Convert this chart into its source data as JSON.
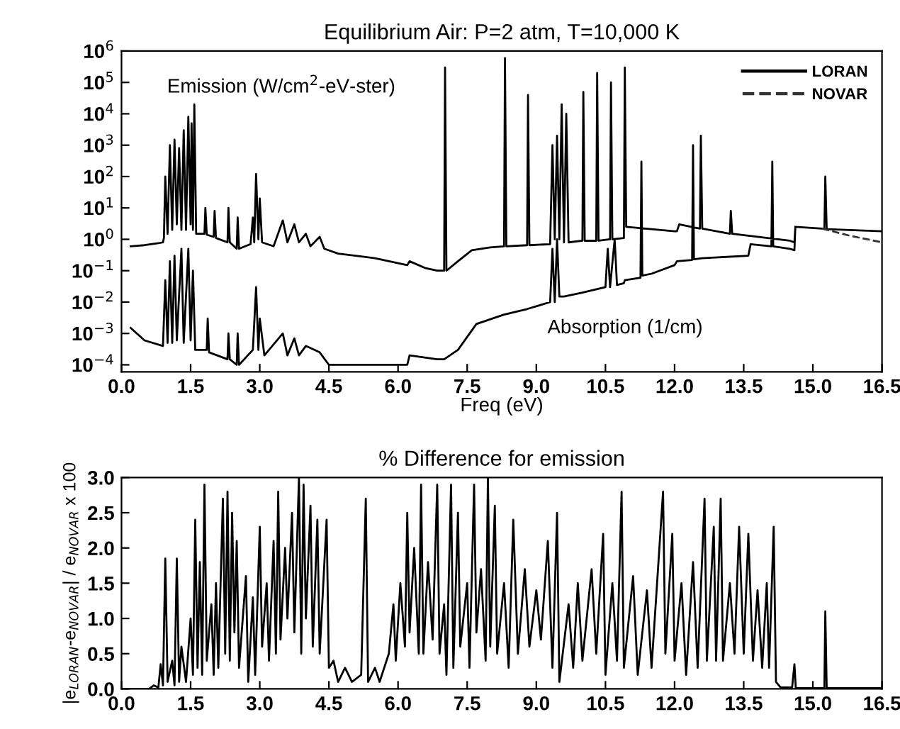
{
  "chart_data": [
    {
      "type": "line",
      "title": "Equilibrium Air: P=2 atm, T=10,000 K",
      "xlabel": "Freq (eV)",
      "log": "y",
      "legend": "top right",
      "marker": "none",
      "grid": false,
      "xlim": [
        0,
        16.5
      ],
      "xticks": [
        {
          "value": 0,
          "label": "0.0"
        },
        {
          "value": 1.5,
          "label": "1.5"
        },
        {
          "value": 3,
          "label": "3.0"
        },
        {
          "value": 4.5,
          "label": "4.5"
        },
        {
          "value": 6,
          "label": "6.0"
        },
        {
          "value": 7.5,
          "label": "7.5"
        },
        {
          "value": 9,
          "label": "9.0"
        },
        {
          "value": 10.5,
          "label": "10.5"
        },
        {
          "value": 12,
          "label": "12.0"
        },
        {
          "value": 13.5,
          "label": "13.5"
        },
        {
          "value": 15,
          "label": "15.0"
        },
        {
          "value": 16.5,
          "label": "16.5"
        }
      ],
      "ylim": [
        6e-05,
        1000000
      ],
      "yticks": [
        {
          "value": 0.0001,
          "label": "10$^{−4}$"
        },
        {
          "value": 0.001,
          "label": "10$^{−3}$"
        },
        {
          "value": 0.01,
          "label": "10$^{−2}$"
        },
        {
          "value": 0.1,
          "label": "10$^{−1}$"
        },
        {
          "value": 1,
          "label": "10$^{0}$"
        },
        {
          "value": 10,
          "label": "10$^{1}$"
        },
        {
          "value": 100,
          "label": "10$^{2}$"
        },
        {
          "value": 1000,
          "label": "10$^{3}$"
        },
        {
          "value": 10000,
          "label": "10$^{4}$"
        },
        {
          "value": 100000,
          "label": "10$^{5}$"
        },
        {
          "value": 1000000,
          "label": "10$^{6}$"
        }
      ],
      "annotations": [
        "Emission (W/cm$^{2}$-eV-ster)",
        "Absorption (1/cm)"
      ],
      "series": [
        {
          "name": "LORAN",
          "color": "#000000",
          "line_style": "solid",
          "x": [
            0.2,
            0.5,
            0.8,
            0.9,
            0.92,
            0.95,
            1.0,
            1.05,
            1.1,
            1.15,
            1.2,
            1.25,
            1.3,
            1.35,
            1.4,
            1.45,
            1.5,
            1.52,
            1.55,
            1.58,
            1.62,
            1.8,
            1.82,
            1.85,
            2.0,
            2.02,
            2.05,
            2.3,
            2.32,
            2.35,
            2.5,
            2.52,
            2.55,
            2.8,
            2.85,
            2.88,
            2.92,
            2.97,
            3.0,
            3.05,
            3.3,
            3.5,
            3.6,
            3.75,
            3.85,
            4.0,
            4.1,
            4.3,
            4.4,
            4.7,
            5.5,
            6.2,
            6.25,
            6.6,
            6.85,
            7.0,
            7.02,
            7.05,
            7.3,
            7.6,
            8.0,
            8.3,
            8.32,
            8.35,
            8.8,
            8.82,
            8.85,
            9.3,
            9.35,
            9.4,
            9.45,
            9.5,
            9.55,
            9.6,
            9.65,
            9.7,
            10.0,
            10.02,
            10.05,
            10.3,
            10.32,
            10.35,
            10.6,
            10.62,
            10.65,
            10.9,
            10.92,
            10.95,
            12.0,
            12.05,
            12.1,
            12.55,
            12.57,
            12.6,
            13.2,
            13.22,
            13.25,
            14.5,
            14.6,
            14.62,
            15.2,
            15.25,
            15.27,
            15.3,
            16.5,
            null,
            0.2,
            0.5,
            0.9,
            0.95,
            1.0,
            1.05,
            1.1,
            1.15,
            1.2,
            1.3,
            1.35,
            1.45,
            1.5,
            1.55,
            1.6,
            1.85,
            1.87,
            1.9,
            2.3,
            2.32,
            2.35,
            2.5,
            2.52,
            2.55,
            2.85,
            2.92,
            2.97,
            3.0,
            3.1,
            3.5,
            3.6,
            3.75,
            3.85,
            4.0,
            4.3,
            4.5,
            6.2,
            6.25,
            6.85,
            7.0,
            7.3,
            7.7,
            8.3,
            8.8,
            9.3,
            9.35,
            9.4,
            9.45,
            9.5,
            9.6,
            10.0,
            10.5,
            10.55,
            10.6,
            10.7,
            10.75,
            10.9,
            10.92,
            11.26,
            11.28,
            11.3,
            11.5,
            12.0,
            12.05,
            12.38,
            12.4,
            12.42,
            12.6,
            13.6,
            13.65,
            14.1,
            14.12,
            14.14,
            14.5,
            14.6,
            14.62
          ],
          "values": [
            0.6,
            0.65,
            0.75,
            0.8,
            1.1,
            100,
            1.5,
            1000,
            2,
            1500,
            3,
            800,
            2,
            3000,
            2,
            8000,
            3,
            5000,
            2,
            20000,
            1.5,
            1.5,
            10,
            1.4,
            1.2,
            8,
            1.1,
            0.8,
            10,
            0.8,
            0.5,
            5,
            0.5,
            0.7,
            5,
            0.8,
            120,
            1,
            20,
            0.8,
            0.6,
            4,
            0.8,
            3,
            0.8,
            1.5,
            0.6,
            1.2,
            0.5,
            0.35,
            0.25,
            0.15,
            0.2,
            0.12,
            0.1,
            0.1,
            300000,
            0.1,
            0.2,
            0.45,
            0.55,
            0.6,
            600000,
            0.6,
            0.65,
            40000,
            0.65,
            0.7,
            1000,
            1,
            2000,
            1,
            20000,
            0.8,
            10000,
            0.8,
            0.9,
            50000,
            0.9,
            0.9,
            200000,
            0.9,
            1.0,
            100000,
            1.0,
            1.1,
            300000,
            2.5,
            1.8,
            1.8,
            3,
            2.2,
            2000,
            2.2,
            1.5,
            8,
            1.5,
            0.9,
            0.8,
            2.5,
            2.2,
            2.2,
            100,
            2.1,
            1.8,
            null,
            0.0015,
            0.0006,
            0.0004,
            0.05,
            0.0005,
            0.2,
            0.0005,
            0.3,
            0.0006,
            0.5,
            0.0005,
            0.5,
            0.0006,
            0.1,
            0.0003,
            0.0003,
            0.003,
            0.00025,
            0.00015,
            0.001,
            0.00015,
            0.0001,
            0.001,
            0.0001,
            0.0003,
            0.03,
            0.0003,
            0.003,
            0.0002,
            0.001,
            0.0002,
            0.0007,
            0.0002,
            0.0004,
            0.00025,
            0.0001,
            0.0001,
            0.0002,
            0.00015,
            0.00015,
            0.0003,
            0.002,
            0.004,
            0.006,
            0.01,
            0.5,
            0.01,
            1,
            0.015,
            0.015,
            0.02,
            0.03,
            0.5,
            0.03,
            1.0,
            0.035,
            0.04,
            0.05,
            0.06,
            300,
            0.07,
            0.08,
            0.15,
            0.2,
            0.22,
            1000,
            0.23,
            0.25,
            0.3,
            0.7,
            0.6,
            300,
            0.6,
            0.5,
            0.45,
            2.5
          ]
        },
        {
          "name": "NOVAR",
          "color": "#333333",
          "line_style": "dashed",
          "x": [
            15.2,
            15.8,
            16.5
          ],
          "values": [
            2.2,
            1.3,
            0.8
          ]
        }
      ]
    },
    {
      "type": "line",
      "title": "% Difference for emission",
      "ylabel": "|e$_{LORAN}$-e$_{NOVAR}$| / e$_{NOVAR}$ x 100",
      "marker": "none",
      "grid": false,
      "xlim": [
        0,
        16.5
      ],
      "xticks": [
        {
          "value": 0,
          "label": "0.0"
        },
        {
          "value": 1.5,
          "label": "1.5"
        },
        {
          "value": 3,
          "label": "3.0"
        },
        {
          "value": 4.5,
          "label": "4.5"
        },
        {
          "value": 6,
          "label": "6.0"
        },
        {
          "value": 7.5,
          "label": "7.5"
        },
        {
          "value": 9,
          "label": "9.0"
        },
        {
          "value": 10.5,
          "label": "10.5"
        },
        {
          "value": 12,
          "label": "12.0"
        },
        {
          "value": 13.5,
          "label": "13.5"
        },
        {
          "value": 15,
          "label": "15.0"
        },
        {
          "value": 16.5,
          "label": "16.5"
        }
      ],
      "ylim": [
        0,
        3
      ],
      "yticks": [
        {
          "value": 0,
          "label": "0.0"
        },
        {
          "value": 0.5,
          "label": "0.5"
        },
        {
          "value": 1,
          "label": "1.0"
        },
        {
          "value": 1.5,
          "label": "1.5"
        },
        {
          "value": 2,
          "label": "2.0"
        },
        {
          "value": 2.5,
          "label": "2.5"
        },
        {
          "value": 3,
          "label": "3.0"
        }
      ],
      "series": [
        {
          "color": "#000000",
          "line_style": "solid",
          "x": [
            0.0,
            0.6,
            0.7,
            0.8,
            0.85,
            0.9,
            0.95,
            1.0,
            1.1,
            1.15,
            1.2,
            1.25,
            1.3,
            1.4,
            1.5,
            1.55,
            1.6,
            1.65,
            1.7,
            1.75,
            1.8,
            1.85,
            1.95,
            2.0,
            2.05,
            2.1,
            2.2,
            2.25,
            2.3,
            2.35,
            2.4,
            2.45,
            2.5,
            2.55,
            2.7,
            2.75,
            2.85,
            2.9,
            3.0,
            3.05,
            3.15,
            3.2,
            3.3,
            3.35,
            3.4,
            3.45,
            3.55,
            3.6,
            3.7,
            3.75,
            3.85,
            3.9,
            3.95,
            4.0,
            4.1,
            4.15,
            4.25,
            4.3,
            4.45,
            4.5,
            4.6,
            4.7,
            4.85,
            5.0,
            5.2,
            5.3,
            5.35,
            5.5,
            5.6,
            5.8,
            5.9,
            5.95,
            6.05,
            6.15,
            6.2,
            6.25,
            6.35,
            6.45,
            6.5,
            6.55,
            6.65,
            6.75,
            6.85,
            6.9,
            7.0,
            7.05,
            7.15,
            7.2,
            7.3,
            7.35,
            7.5,
            7.55,
            7.65,
            7.7,
            7.8,
            7.9,
            7.95,
            8.0,
            8.1,
            8.15,
            8.3,
            8.4,
            8.5,
            8.6,
            8.75,
            8.85,
            9.0,
            9.1,
            9.25,
            9.35,
            9.45,
            9.5,
            9.7,
            9.8,
            9.9,
            10.0,
            10.2,
            10.3,
            10.45,
            10.5,
            10.65,
            10.75,
            10.85,
            10.9,
            11.1,
            11.2,
            11.4,
            11.5,
            11.65,
            11.75,
            11.8,
            11.95,
            12.0,
            12.15,
            12.25,
            12.4,
            12.5,
            12.65,
            12.7,
            12.85,
            12.9,
            13.0,
            13.05,
            13.2,
            13.3,
            13.4,
            13.5,
            13.6,
            13.7,
            13.8,
            13.9,
            14.0,
            14.05,
            14.15,
            14.2,
            14.3,
            14.55,
            14.6,
            14.63,
            15.25,
            15.27,
            15.3,
            16.5
          ],
          "values": [
            0,
            0,
            0.05,
            0.02,
            0.35,
            0.05,
            1.85,
            0.1,
            0.4,
            0.05,
            1.85,
            0.1,
            0.6,
            0.1,
            1.0,
            0.2,
            2.4,
            0.3,
            1.8,
            0.2,
            2.9,
            0.4,
            1.2,
            0.2,
            1.5,
            0.3,
            2.7,
            0.5,
            2.8,
            0.4,
            2.5,
            0.8,
            2.1,
            0.3,
            1.6,
            0.1,
            1.3,
            0.2,
            2.3,
            0.6,
            1.5,
            0.4,
            2.1,
            0.5,
            2.8,
            0.7,
            2.0,
            1.0,
            2.5,
            0.8,
            3.0,
            0.5,
            2.9,
            1.0,
            2.6,
            0.6,
            2.4,
            0.5,
            2.4,
            0.3,
            0.4,
            0.1,
            0.3,
            0.1,
            0.2,
            2.7,
            0.1,
            0.3,
            0.1,
            0.5,
            1.2,
            0.4,
            1.5,
            0.6,
            2.5,
            0.8,
            2.0,
            0.5,
            2.9,
            0.5,
            1.8,
            0.7,
            2.9,
            0.5,
            1.2,
            0.2,
            2.9,
            0.3,
            2.5,
            0.6,
            1.5,
            0.3,
            2.9,
            0.8,
            1.7,
            0.4,
            3.0,
            0.6,
            2.6,
            0.5,
            1.5,
            0.3,
            2.4,
            0.5,
            1.7,
            0.6,
            1.4,
            0.7,
            2.1,
            0.3,
            2.5,
            0.1,
            1.2,
            0.3,
            1.5,
            0.4,
            1.7,
            0.5,
            2.2,
            0.2,
            1.5,
            0.4,
            2.8,
            0.3,
            1.6,
            0.2,
            1.4,
            0.3,
            1.8,
            2.8,
            0.5,
            2.2,
            0.4,
            1.5,
            0.2,
            1.8,
            0.3,
            2.7,
            0.4,
            2.3,
            0.4,
            2.7,
            0.4,
            1.5,
            0.5,
            2.3,
            0.5,
            2.2,
            0.4,
            1.4,
            0.3,
            1.5,
            0.3,
            2.3,
            0.1,
            0.02,
            0.02,
            0.35,
            0.01,
            0.01,
            1.1,
            0.01,
            0.01
          ]
        }
      ]
    }
  ]
}
